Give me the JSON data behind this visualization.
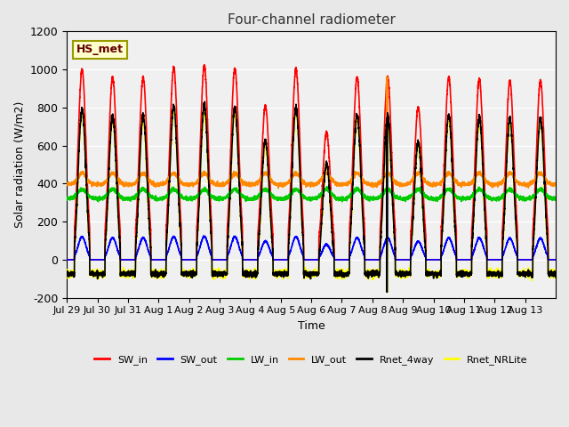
{
  "title": "Four-channel radiometer",
  "xlabel": "Time",
  "ylabel": "Solar radiation (W/m2)",
  "station_label": "HS_met",
  "ylim": [
    -200,
    1200
  ],
  "background_color": "#e8e8e8",
  "plot_bg_color": "#f0f0f0",
  "series": {
    "SW_in": {
      "color": "#ff0000",
      "lw": 1.2
    },
    "SW_out": {
      "color": "#0000ff",
      "lw": 1.2
    },
    "LW_in": {
      "color": "#00cc00",
      "lw": 1.2
    },
    "LW_out": {
      "color": "#ff8800",
      "lw": 1.2
    },
    "Rnet_4way": {
      "color": "#000000",
      "lw": 1.2
    },
    "Rnet_NRLite": {
      "color": "#ffff00",
      "lw": 1.2
    }
  },
  "x_tick_labels": [
    "Jul 29",
    "Jul 30",
    "Jul 31",
    "Aug 1",
    "Aug 2",
    "Aug 3",
    "Aug 4",
    "Aug 5",
    "Aug 6",
    "Aug 7",
    "Aug 8",
    "Aug 9",
    "Aug 10",
    "Aug 11",
    "Aug 12",
    "Aug 13"
  ],
  "y_ticks": [
    -200,
    0,
    200,
    400,
    600,
    800,
    1000,
    1200
  ],
  "n_days": 16
}
